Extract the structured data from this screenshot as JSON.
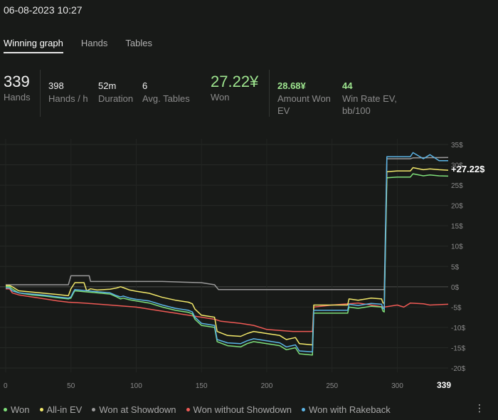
{
  "header": {
    "datetime": "06-08-2023 10:27"
  },
  "tabs": [
    {
      "label": "Winning graph",
      "active": true
    },
    {
      "label": "Hands",
      "active": false
    },
    {
      "label": "Tables",
      "active": false
    }
  ],
  "stats": {
    "hands": {
      "value": "339",
      "label": "Hands"
    },
    "hands_per_h": {
      "value": "398",
      "label": "Hands / h"
    },
    "duration": {
      "value": "52m",
      "label": "Duration"
    },
    "avg_tables": {
      "value": "6",
      "label": "Avg. Tables"
    },
    "won": {
      "value": "27.22¥",
      "label": "Won"
    },
    "amount_won_ev": {
      "value": "28.68¥",
      "label_line1": "Amount Won",
      "label_line2": "EV"
    },
    "win_rate_ev": {
      "value": "44",
      "label_line1": "Win Rate EV,",
      "label_line2": "bb/100"
    }
  },
  "legend": [
    {
      "label": "Won",
      "color": "#7fe07a"
    },
    {
      "label": "All-in EV",
      "color": "#f2e86a"
    },
    {
      "label": "Won at Showdown",
      "color": "#9a9a9a"
    },
    {
      "label": "Won without Showdown",
      "color": "#ef5a55"
    },
    {
      "label": "Won with Rakeback",
      "color": "#5cb5e6"
    }
  ],
  "more_icon": "more-dots-icon",
  "chart_data": {
    "type": "line",
    "final_label": "+27.22$",
    "x_ticks": [
      "0",
      "50",
      "100",
      "150",
      "200",
      "250",
      "300",
      "339"
    ],
    "x_range": [
      0,
      339
    ],
    "y_ticks": [
      "35$",
      "30$",
      "25$",
      "20$",
      "15$",
      "10$",
      "5$",
      "0$",
      "-5$",
      "-10$",
      "-15$",
      "-20$"
    ],
    "y_range": [
      -20,
      35
    ],
    "grid": true,
    "legend_position": "bottom",
    "series": [
      {
        "name": "Won",
        "color": "#7fe07a",
        "points": [
          [
            0,
            0
          ],
          [
            3,
            0
          ],
          [
            5,
            -0.5
          ],
          [
            10,
            -1.5
          ],
          [
            20,
            -2
          ],
          [
            30,
            -2.3
          ],
          [
            40,
            -2.7
          ],
          [
            48,
            -3
          ],
          [
            50,
            -2.8
          ],
          [
            52,
            -1.5
          ],
          [
            53,
            -1
          ],
          [
            60,
            -1.2
          ],
          [
            70,
            -1.5
          ],
          [
            80,
            -1.8
          ],
          [
            85,
            -2.5
          ],
          [
            88,
            -3
          ],
          [
            90,
            -2.8
          ],
          [
            95,
            -3.2
          ],
          [
            100,
            -3.5
          ],
          [
            110,
            -4
          ],
          [
            120,
            -5
          ],
          [
            130,
            -5.8
          ],
          [
            140,
            -6.3
          ],
          [
            143,
            -6.7
          ],
          [
            145,
            -8
          ],
          [
            150,
            -9.5
          ],
          [
            160,
            -10
          ],
          [
            162,
            -13.5
          ],
          [
            170,
            -14.5
          ],
          [
            180,
            -14.8
          ],
          [
            185,
            -14
          ],
          [
            190,
            -13.5
          ],
          [
            200,
            -14
          ],
          [
            210,
            -14.5
          ],
          [
            215,
            -15.5
          ],
          [
            222,
            -15
          ],
          [
            225,
            -16.5
          ],
          [
            235,
            -16.8
          ],
          [
            236,
            -6.5
          ],
          [
            250,
            -6.5
          ],
          [
            262,
            -6.5
          ],
          [
            263,
            -5
          ],
          [
            270,
            -5.3
          ],
          [
            280,
            -4.8
          ],
          [
            288,
            -5
          ],
          [
            289,
            -6
          ],
          [
            290,
            -6.2
          ],
          [
            292,
            26.8
          ],
          [
            300,
            27
          ],
          [
            310,
            27
          ],
          [
            312,
            27.8
          ],
          [
            320,
            27.3
          ],
          [
            325,
            27.5
          ],
          [
            332,
            27.3
          ],
          [
            339,
            27.22
          ]
        ]
      },
      {
        "name": "All-in EV",
        "color": "#f2e86a",
        "points": [
          [
            0,
            0.3
          ],
          [
            3,
            0.3
          ],
          [
            5,
            0
          ],
          [
            10,
            -1
          ],
          [
            20,
            -1.3
          ],
          [
            30,
            -1.6
          ],
          [
            40,
            -1.9
          ],
          [
            48,
            -2.2
          ],
          [
            50,
            -0.5
          ],
          [
            52,
            0.5
          ],
          [
            53,
            1
          ],
          [
            60,
            1
          ],
          [
            62,
            -1
          ],
          [
            65,
            -0.5
          ],
          [
            70,
            -0.8
          ],
          [
            80,
            -0.6
          ],
          [
            85,
            -0.3
          ],
          [
            88,
            0
          ],
          [
            90,
            -0.2
          ],
          [
            95,
            -0.8
          ],
          [
            100,
            -1.1
          ],
          [
            110,
            -1.6
          ],
          [
            120,
            -2.6
          ],
          [
            130,
            -3.3
          ],
          [
            140,
            -3.8
          ],
          [
            143,
            -4.2
          ],
          [
            145,
            -5.5
          ],
          [
            150,
            -7
          ],
          [
            160,
            -7.5
          ],
          [
            162,
            -11
          ],
          [
            170,
            -12
          ],
          [
            180,
            -12.2
          ],
          [
            185,
            -11.5
          ],
          [
            190,
            -11
          ],
          [
            200,
            -11.5
          ],
          [
            210,
            -12
          ],
          [
            215,
            -13
          ],
          [
            222,
            -12.5
          ],
          [
            225,
            -14
          ],
          [
            235,
            -14.3
          ],
          [
            236,
            -4.5
          ],
          [
            250,
            -4.5
          ],
          [
            262,
            -4.5
          ],
          [
            263,
            -3
          ],
          [
            270,
            -3.3
          ],
          [
            280,
            -2.8
          ],
          [
            288,
            -3
          ],
          [
            289,
            -4
          ],
          [
            290,
            -4
          ],
          [
            292,
            28.3
          ],
          [
            300,
            28.5
          ],
          [
            310,
            28.5
          ],
          [
            312,
            29.3
          ],
          [
            320,
            28.8
          ],
          [
            325,
            29
          ],
          [
            332,
            28.8
          ],
          [
            339,
            28.68
          ]
        ]
      },
      {
        "name": "Won at Showdown",
        "color": "#9a9a9a",
        "points": [
          [
            0,
            0.5
          ],
          [
            48,
            0.5
          ],
          [
            50,
            2.7
          ],
          [
            64,
            2.7
          ],
          [
            65,
            1.3
          ],
          [
            120,
            1.3
          ],
          [
            150,
            1
          ],
          [
            160,
            0.5
          ],
          [
            163,
            -0.7
          ],
          [
            180,
            -0.7
          ],
          [
            190,
            -0.7
          ],
          [
            290,
            -0.7
          ],
          [
            292,
            31.5
          ],
          [
            310,
            31.5
          ],
          [
            312,
            31.7
          ],
          [
            339,
            31.8
          ]
        ]
      },
      {
        "name": "Won without Showdown",
        "color": "#ef5a55",
        "points": [
          [
            0,
            -0.5
          ],
          [
            3,
            -0.5
          ],
          [
            5,
            -1.5
          ],
          [
            10,
            -2
          ],
          [
            20,
            -2.5
          ],
          [
            30,
            -3
          ],
          [
            40,
            -3.5
          ],
          [
            48,
            -3.8
          ],
          [
            60,
            -4
          ],
          [
            80,
            -4.5
          ],
          [
            100,
            -5
          ],
          [
            110,
            -5.5
          ],
          [
            120,
            -6
          ],
          [
            130,
            -6.5
          ],
          [
            140,
            -7
          ],
          [
            150,
            -7.5
          ],
          [
            160,
            -8
          ],
          [
            165,
            -8.5
          ],
          [
            180,
            -9
          ],
          [
            190,
            -9.5
          ],
          [
            200,
            -10.5
          ],
          [
            220,
            -11
          ],
          [
            235,
            -11
          ],
          [
            236,
            -5
          ],
          [
            250,
            -4.5
          ],
          [
            270,
            -4
          ],
          [
            280,
            -4.5
          ],
          [
            290,
            -5
          ],
          [
            300,
            -4.5
          ],
          [
            305,
            -5
          ],
          [
            310,
            -4
          ],
          [
            320,
            -4.2
          ],
          [
            325,
            -4.5
          ],
          [
            339,
            -4.3
          ]
        ]
      },
      {
        "name": "Won with Rakeback",
        "color": "#5cb5e6",
        "points": [
          [
            0,
            -0.3
          ],
          [
            3,
            -0.3
          ],
          [
            5,
            -1
          ],
          [
            10,
            -1.5
          ],
          [
            20,
            -1.8
          ],
          [
            30,
            -2.1
          ],
          [
            40,
            -2.5
          ],
          [
            48,
            -2.8
          ],
          [
            50,
            -2.5
          ],
          [
            52,
            -1.2
          ],
          [
            53,
            -0.7
          ],
          [
            60,
            -0.9
          ],
          [
            70,
            -1.2
          ],
          [
            80,
            -1.5
          ],
          [
            85,
            -2.2
          ],
          [
            88,
            -2.5
          ],
          [
            90,
            -2.3
          ],
          [
            95,
            -2.8
          ],
          [
            100,
            -3.1
          ],
          [
            110,
            -3.5
          ],
          [
            120,
            -4.5
          ],
          [
            130,
            -5.3
          ],
          [
            140,
            -5.8
          ],
          [
            143,
            -6.2
          ],
          [
            145,
            -7.5
          ],
          [
            150,
            -9
          ],
          [
            160,
            -9.5
          ],
          [
            162,
            -13
          ],
          [
            170,
            -13.8
          ],
          [
            180,
            -14
          ],
          [
            185,
            -13.3
          ],
          [
            190,
            -12.8
          ],
          [
            200,
            -13.3
          ],
          [
            210,
            -13.8
          ],
          [
            215,
            -14.8
          ],
          [
            222,
            -14.3
          ],
          [
            225,
            -15.8
          ],
          [
            235,
            -16
          ],
          [
            236,
            -5.8
          ],
          [
            250,
            -5.8
          ],
          [
            262,
            -5.8
          ],
          [
            263,
            -4.3
          ],
          [
            270,
            -4.6
          ],
          [
            280,
            -4.1
          ],
          [
            288,
            -4.3
          ],
          [
            289,
            -5.3
          ],
          [
            290,
            -5.5
          ],
          [
            292,
            32
          ],
          [
            310,
            32
          ],
          [
            312,
            33
          ],
          [
            320,
            31.5
          ],
          [
            325,
            32.5
          ],
          [
            332,
            31
          ],
          [
            339,
            31
          ]
        ]
      }
    ]
  }
}
